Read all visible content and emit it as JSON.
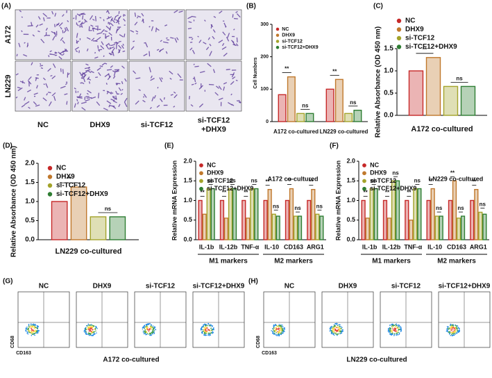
{
  "image_panel": {
    "label": "(A)",
    "rows": [
      "A172",
      "LN229"
    ],
    "columns": [
      [
        "NC"
      ],
      [
        "DHX9"
      ],
      [
        "si-TCF12"
      ],
      [
        "si-TCF12",
        "+DHX9"
      ]
    ]
  },
  "chart_data": [
    {
      "type": "bar",
      "panel": "(B)",
      "ylabel": "Cell Numbers",
      "categories": [
        "A172 co-cultured",
        "LN229 co-cultured"
      ],
      "series": [
        {
          "name": "NC",
          "color": "#c62828",
          "values": [
            83,
            100
          ]
        },
        {
          "name": "DHX9",
          "color": "#c0782c",
          "values": [
            138,
            130
          ]
        },
        {
          "name": "si-TCF12",
          "color": "#a3a32a",
          "values": [
            25,
            25
          ]
        },
        {
          "name": "si-TCF12+DHX9",
          "color": "#2e7d32",
          "values": [
            25,
            35
          ]
        }
      ],
      "ylim": [
        0,
        300
      ],
      "yticks": [
        0,
        100,
        200,
        300
      ],
      "significance": [
        [
          "**",
          "ns"
        ],
        [
          "**",
          "ns"
        ]
      ]
    },
    {
      "type": "bar",
      "panel": "(C)",
      "ylabel": "Relative Absorbance (OD 450 nm)",
      "categories": [
        "A172 co-cultured"
      ],
      "series": [
        {
          "name": "NC",
          "color": "#c62828",
          "values": [
            1.0
          ]
        },
        {
          "name": "DHX9",
          "color": "#c0782c",
          "values": [
            1.3
          ]
        },
        {
          "name": "si-TCF12",
          "color": "#a3a32a",
          "values": [
            0.65
          ]
        },
        {
          "name": "si-TCF12+DHX9",
          "color": "#2e7d32",
          "values": [
            0.65
          ]
        }
      ],
      "ylim": [
        0,
        1.5
      ],
      "yticks": [
        {
          "value": 0,
          "label": "0.0"
        },
        0.5,
        {
          "value": 1,
          "label": "1.0"
        },
        1.5
      ],
      "significance": [
        [
          "**",
          "ns"
        ]
      ]
    },
    {
      "type": "bar",
      "panel": "(D)",
      "ylabel": "Relative Absorbance (OD 450 nm)",
      "categories": [
        "LN229 co-cultured"
      ],
      "series": [
        {
          "name": "NC",
          "color": "#c62828",
          "values": [
            1.0
          ]
        },
        {
          "name": "DHX9",
          "color": "#c0782c",
          "values": [
            1.38
          ]
        },
        {
          "name": "si-TCF12",
          "color": "#a3a32a",
          "values": [
            0.6
          ]
        },
        {
          "name": "si-TCF12+DHX9",
          "color": "#2e7d32",
          "values": [
            0.6
          ]
        }
      ],
      "ylim": [
        0,
        2
      ],
      "yticks": [
        {
          "value": 0,
          "label": "0.0"
        },
        0.5,
        {
          "value": 1,
          "label": "1.0"
        },
        1.5,
        {
          "value": 2,
          "label": "2.0"
        }
      ],
      "significance": [
        [
          "**",
          "ns"
        ]
      ]
    },
    {
      "type": "bar",
      "panel": "(E)",
      "ylabel": "Relative mRNA Expression",
      "subtitle": "A172 co-cultured",
      "categories": [
        "IL-1b",
        "IL-12b",
        "TNF-α",
        "IL-10",
        "CD163",
        "ARG1"
      ],
      "groups": [
        "M1 markers",
        "M2 markers"
      ],
      "series": [
        {
          "name": "NC",
          "color": "#c62828",
          "values": [
            1.0,
            1.0,
            1.0,
            1.0,
            1.0,
            1.0
          ]
        },
        {
          "name": "DHX9",
          "color": "#c0782c",
          "values": [
            0.65,
            0.55,
            0.55,
            1.28,
            1.3,
            1.28
          ]
        },
        {
          "name": "si-TCF12",
          "color": "#a3a32a",
          "values": [
            1.3,
            1.3,
            1.3,
            0.65,
            0.6,
            0.65
          ]
        },
        {
          "name": "si-TCF12+DHX9",
          "color": "#2e7d32",
          "values": [
            1.3,
            1.3,
            1.3,
            0.6,
            0.6,
            0.6
          ]
        }
      ],
      "ylim": [
        0,
        2
      ],
      "yticks": [
        {
          "value": 0,
          "label": "0.0"
        },
        0.5,
        {
          "value": 1,
          "label": "1.0"
        },
        1.5,
        {
          "value": 2,
          "label": "2.0"
        }
      ],
      "significance": [
        [
          "**",
          "ns"
        ],
        [
          "**",
          "ns"
        ],
        [
          "**",
          "ns"
        ],
        [
          "**",
          "ns"
        ],
        [
          "**",
          "ns"
        ],
        [
          "**",
          "ns"
        ]
      ]
    },
    {
      "type": "bar",
      "panel": "(F)",
      "ylabel": "Relative mRNA Expression",
      "subtitle": "LN229 co-cultured",
      "categories": [
        "IL-1b",
        "IL-12b",
        "TNF-α",
        "IL-10",
        "CD163",
        "ARG1"
      ],
      "groups": [
        "M1 markers",
        "M2 markers"
      ],
      "series": [
        {
          "name": "NC",
          "color": "#c62828",
          "values": [
            1.0,
            1.0,
            1.0,
            1.0,
            1.0,
            1.0
          ]
        },
        {
          "name": "DHX9",
          "color": "#c0782c",
          "values": [
            0.55,
            0.55,
            0.5,
            1.3,
            1.5,
            1.28
          ]
        },
        {
          "name": "si-TCF12",
          "color": "#a3a32a",
          "values": [
            1.3,
            1.5,
            1.3,
            0.6,
            0.55,
            0.7
          ]
        },
        {
          "name": "si-TCF12+DHX9",
          "color": "#2e7d32",
          "values": [
            1.3,
            1.5,
            1.3,
            0.6,
            0.6,
            0.65
          ]
        }
      ],
      "ylim": [
        0,
        2
      ],
      "yticks": [
        {
          "value": 0,
          "label": "0.0"
        },
        0.5,
        {
          "value": 1,
          "label": "1.0"
        },
        1.5,
        {
          "value": 2,
          "label": "2.0"
        }
      ],
      "significance": [
        [
          "**",
          "ns"
        ],
        [
          "**",
          "ns"
        ],
        [
          "**",
          "ns"
        ],
        [
          "**",
          "ns"
        ],
        [
          "**",
          "ns"
        ],
        [
          "**",
          "ns"
        ]
      ]
    }
  ],
  "flow_panels": [
    {
      "label": "(G)",
      "titles": [
        "NC",
        "DHX9",
        "si-TCF12",
        "si-TCF12+DHX9"
      ],
      "y_axis": "CD68",
      "x_axis": "CD163",
      "caption": "A172 co-cultured"
    },
    {
      "label": "(H)",
      "titles": [
        "NC",
        "DHX9",
        "si-TCF12",
        "si-TCF12+DHX9"
      ],
      "y_axis": "CD68",
      "x_axis": "CD163",
      "caption": "LN229 co-cultured"
    }
  ]
}
